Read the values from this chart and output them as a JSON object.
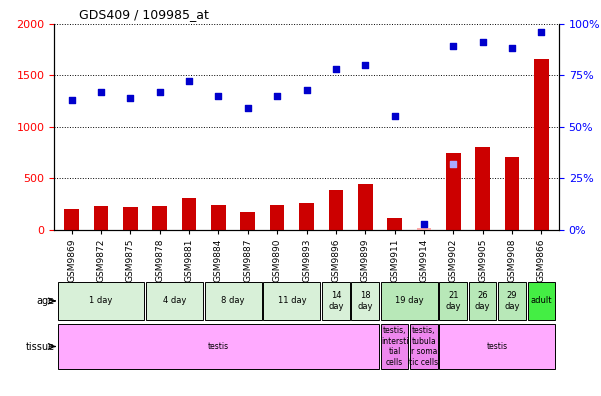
{
  "title": "GDS409 / 109985_at",
  "samples": [
    "GSM9869",
    "GSM9872",
    "GSM9875",
    "GSM9878",
    "GSM9881",
    "GSM9884",
    "GSM9887",
    "GSM9890",
    "GSM9893",
    "GSM9896",
    "GSM9899",
    "GSM9911",
    "GSM9914",
    "GSM9902",
    "GSM9905",
    "GSM9908",
    "GSM9866"
  ],
  "count_values": [
    200,
    230,
    225,
    230,
    310,
    240,
    175,
    240,
    255,
    385,
    440,
    110,
    20,
    740,
    800,
    710,
    1660
  ],
  "rank_values": [
    63,
    67,
    64,
    67,
    72,
    65,
    59,
    65,
    68,
    78,
    80,
    55,
    3,
    89,
    91,
    88,
    96
  ],
  "count_absent": [
    false,
    false,
    false,
    false,
    false,
    false,
    false,
    false,
    false,
    false,
    false,
    false,
    true,
    false,
    false,
    false,
    false
  ],
  "absent_rank_index": 13,
  "absent_rank_value": 32,
  "age_groups": [
    {
      "label": "1 day",
      "start": 0,
      "end": 3,
      "color": "#d8f0d8"
    },
    {
      "label": "4 day",
      "start": 3,
      "end": 5,
      "color": "#d8f0d8"
    },
    {
      "label": "8 day",
      "start": 5,
      "end": 7,
      "color": "#d8f0d8"
    },
    {
      "label": "11 day",
      "start": 7,
      "end": 9,
      "color": "#d8f0d8"
    },
    {
      "label": "14\nday",
      "start": 9,
      "end": 10,
      "color": "#d8f0d8"
    },
    {
      "label": "18\nday",
      "start": 10,
      "end": 11,
      "color": "#d8f0d8"
    },
    {
      "label": "19 day",
      "start": 11,
      "end": 13,
      "color": "#b8e8b8"
    },
    {
      "label": "21\nday",
      "start": 13,
      "end": 14,
      "color": "#b8e8b8"
    },
    {
      "label": "26\nday",
      "start": 14,
      "end": 15,
      "color": "#b8e8b8"
    },
    {
      "label": "29\nday",
      "start": 15,
      "end": 16,
      "color": "#b8e8b8"
    },
    {
      "label": "adult",
      "start": 16,
      "end": 17,
      "color": "#44ee44"
    }
  ],
  "tissue_groups": [
    {
      "label": "testis",
      "start": 0,
      "end": 11,
      "color": "#ffaaff"
    },
    {
      "label": "testis,\nintersti\ntial\ncells",
      "start": 11,
      "end": 12,
      "color": "#ee88ee"
    },
    {
      "label": "testis,\ntubula\nr soma\ntic cells",
      "start": 12,
      "end": 13,
      "color": "#ee88ee"
    },
    {
      "label": "testis",
      "start": 13,
      "end": 17,
      "color": "#ffaaff"
    }
  ],
  "ylim_left": [
    0,
    2000
  ],
  "ylim_right": [
    0,
    100
  ],
  "yticks_left": [
    0,
    500,
    1000,
    1500,
    2000
  ],
  "yticks_right": [
    0,
    25,
    50,
    75,
    100
  ],
  "bar_color": "#cc0000",
  "dot_color": "#0000cc",
  "absent_count_color": "#ffaaaa",
  "absent_rank_color": "#aaaaff",
  "grid_linestyle": "dotted"
}
